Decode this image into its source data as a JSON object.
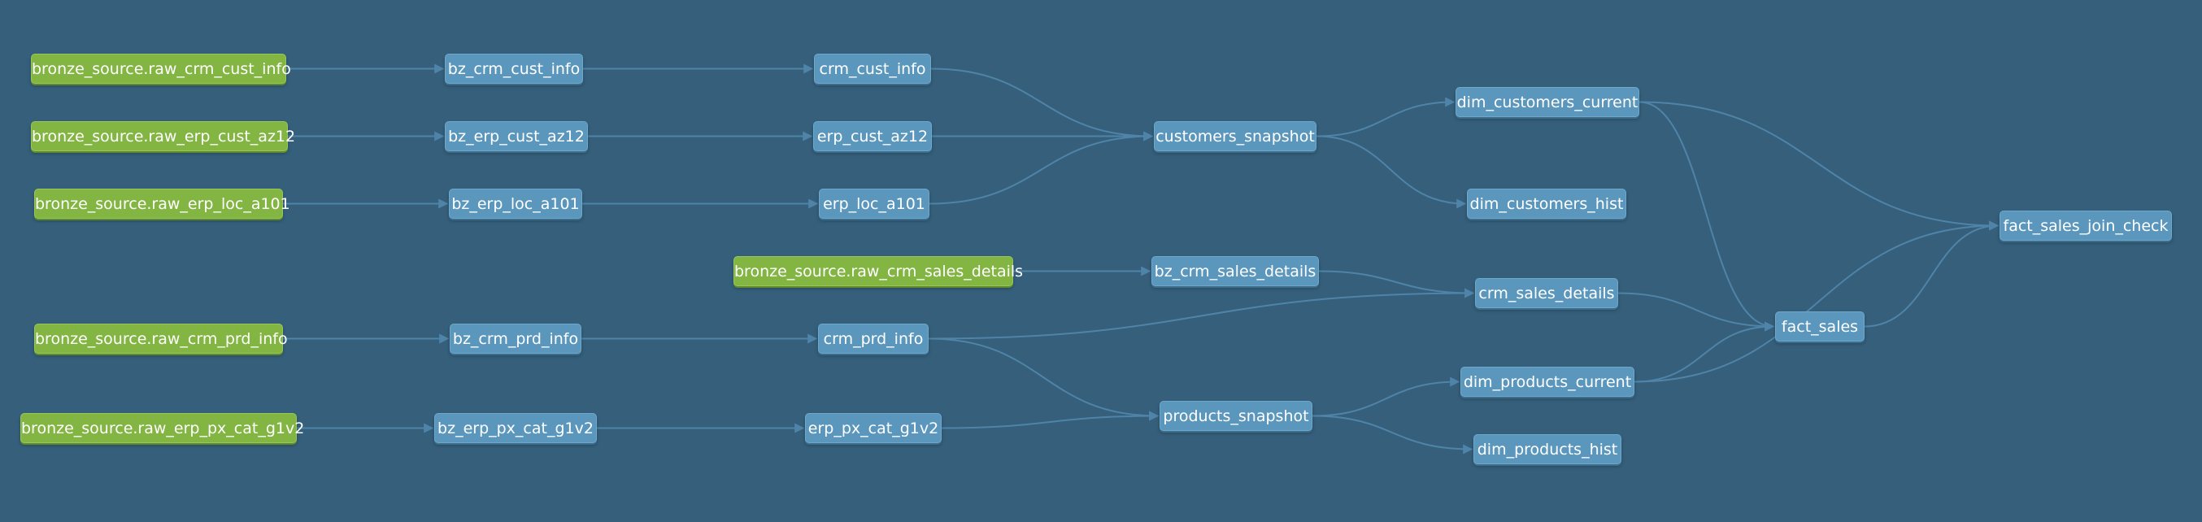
{
  "colors": {
    "background": "#355f7b",
    "source_node": "#83b542",
    "model_node": "#5b97bd",
    "edge": "#4f84a8"
  },
  "nodes": {
    "src_crm_cust_info": "bronze_source.raw_crm_cust_info",
    "src_erp_cust_az12": "bronze_source.raw_erp_cust_az12",
    "src_erp_loc_a101": "bronze_source.raw_erp_loc_a101",
    "src_crm_sales_details": "bronze_source.raw_crm_sales_details",
    "src_crm_prd_info": "bronze_source.raw_crm_prd_info",
    "src_erp_px_cat_g1v2": "bronze_source.raw_erp_px_cat_g1v2",
    "bz_crm_cust_info": "bz_crm_cust_info",
    "bz_erp_cust_az12": "bz_erp_cust_az12",
    "bz_erp_loc_a101": "bz_erp_loc_a101",
    "bz_crm_sales_details": "bz_crm_sales_details",
    "bz_crm_prd_info": "bz_crm_prd_info",
    "bz_erp_px_cat_g1v2": "bz_erp_px_cat_g1v2",
    "crm_cust_info": "crm_cust_info",
    "erp_cust_az12": "erp_cust_az12",
    "erp_loc_a101": "erp_loc_a101",
    "crm_prd_info": "crm_prd_info",
    "erp_px_cat_g1v2": "erp_px_cat_g1v2",
    "customers_snapshot": "customers_snapshot",
    "products_snapshot": "products_snapshot",
    "dim_customers_current": "dim_customers_current",
    "dim_customers_hist": "dim_customers_hist",
    "crm_sales_details": "crm_sales_details",
    "dim_products_current": "dim_products_current",
    "dim_products_hist": "dim_products_hist",
    "fact_sales": "fact_sales",
    "fact_sales_join_check": "fact_sales_join_check"
  },
  "edges": [
    [
      "src_crm_cust_info",
      "bz_crm_cust_info"
    ],
    [
      "src_erp_cust_az12",
      "bz_erp_cust_az12"
    ],
    [
      "src_erp_loc_a101",
      "bz_erp_loc_a101"
    ],
    [
      "src_crm_sales_details",
      "bz_crm_sales_details"
    ],
    [
      "src_crm_prd_info",
      "bz_crm_prd_info"
    ],
    [
      "src_erp_px_cat_g1v2",
      "bz_erp_px_cat_g1v2"
    ],
    [
      "bz_crm_cust_info",
      "crm_cust_info"
    ],
    [
      "bz_erp_cust_az12",
      "erp_cust_az12"
    ],
    [
      "bz_erp_loc_a101",
      "erp_loc_a101"
    ],
    [
      "bz_crm_prd_info",
      "crm_prd_info"
    ],
    [
      "bz_erp_px_cat_g1v2",
      "erp_px_cat_g1v2"
    ],
    [
      "bz_crm_sales_details",
      "crm_sales_details"
    ],
    [
      "crm_cust_info",
      "customers_snapshot"
    ],
    [
      "erp_cust_az12",
      "customers_snapshot"
    ],
    [
      "erp_loc_a101",
      "customers_snapshot"
    ],
    [
      "crm_prd_info",
      "products_snapshot"
    ],
    [
      "erp_px_cat_g1v2",
      "products_snapshot"
    ],
    [
      "crm_prd_info",
      "crm_sales_details"
    ],
    [
      "customers_snapshot",
      "dim_customers_current"
    ],
    [
      "customers_snapshot",
      "dim_customers_hist"
    ],
    [
      "products_snapshot",
      "dim_products_current"
    ],
    [
      "products_snapshot",
      "dim_products_hist"
    ],
    [
      "dim_customers_current",
      "fact_sales"
    ],
    [
      "crm_sales_details",
      "fact_sales"
    ],
    [
      "dim_products_current",
      "fact_sales"
    ],
    [
      "dim_customers_current",
      "fact_sales_join_check"
    ],
    [
      "dim_products_current",
      "fact_sales_join_check"
    ],
    [
      "fact_sales",
      "fact_sales_join_check"
    ]
  ]
}
